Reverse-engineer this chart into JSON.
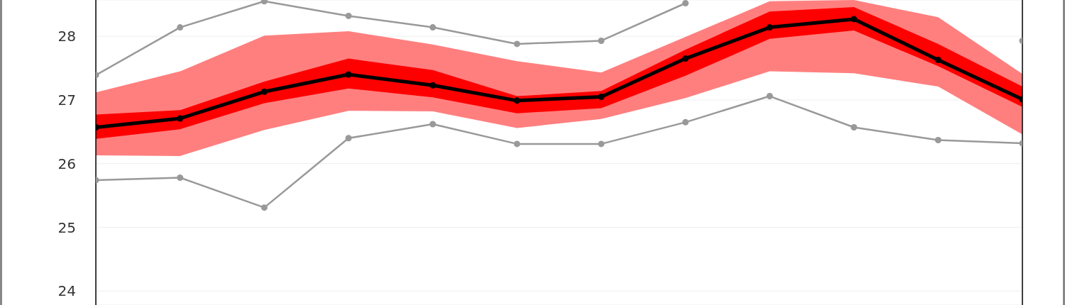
{
  "chart_data": {
    "type": "line",
    "categories": [
      null,
      null,
      null,
      null,
      null,
      null,
      null,
      null,
      null,
      null,
      null,
      null
    ],
    "ylim": [
      23.78,
      28.57
    ],
    "yticks": [
      24,
      25,
      26,
      27,
      28
    ],
    "grid": true,
    "tick_labels": "y",
    "marker": "circle",
    "line_style": "solid",
    "series": [
      {
        "color": "#ff7f7f",
        "values": [
          null,
          null,
          null,
          null,
          null,
          null,
          null,
          null,
          null,
          null,
          null,
          null
        ],
        "upper": [
          27.12,
          27.45,
          28.01,
          28.08,
          27.87,
          27.61,
          27.43,
          27.99,
          28.55,
          28.57,
          28.3,
          27.41
        ],
        "lower": [
          26.13,
          26.12,
          26.53,
          26.83,
          26.82,
          26.56,
          26.7,
          27.03,
          27.45,
          27.42,
          27.21,
          26.46
        ]
      },
      {
        "color": "#ff0000",
        "values": [
          null,
          null,
          null,
          null,
          null,
          null,
          null,
          null,
          null,
          null,
          null,
          null
        ],
        "upper": [
          26.77,
          26.84,
          27.29,
          27.65,
          27.47,
          27.06,
          27.14,
          27.79,
          28.39,
          28.46,
          27.88,
          27.21
        ],
        "lower": [
          26.39,
          26.54,
          26.95,
          27.18,
          27.04,
          26.79,
          26.87,
          27.38,
          27.96,
          28.09,
          27.53,
          26.89
        ]
      },
      {
        "color": "#999999",
        "values": [
          27.39,
          28.14,
          28.55,
          28.32,
          28.14,
          27.88,
          27.93,
          28.52,
          null,
          null,
          null,
          27.93
        ]
      },
      {
        "color": "#999999",
        "values": [
          25.74,
          25.78,
          25.31,
          26.4,
          26.62,
          26.31,
          26.31,
          26.65,
          27.06,
          26.57,
          26.37,
          26.32
        ]
      },
      {
        "color": "#000000",
        "values": [
          26.57,
          26.71,
          27.13,
          27.4,
          27.23,
          26.99,
          27.05,
          27.65,
          28.14,
          28.27,
          27.63,
          27.01
        ]
      }
    ]
  }
}
